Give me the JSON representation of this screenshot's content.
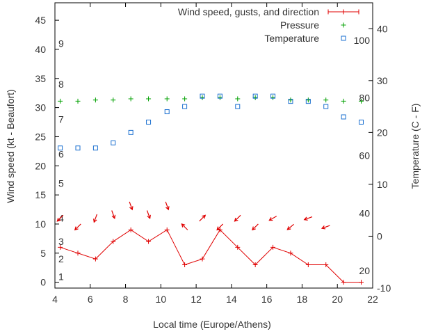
{
  "chart_data": {
    "type": "line",
    "xlabel": "Local time (Europe/Athens)",
    "ylabel": "Wind speed (kt - Beaufort)",
    "y2label": "Temperature (C - F)",
    "xlim": [
      4,
      22
    ],
    "ylim": [
      -1,
      48
    ],
    "y2lim": [
      -10,
      45
    ],
    "x_ticks": [
      4,
      6,
      8,
      10,
      12,
      14,
      16,
      18,
      20,
      22
    ],
    "y_ticks": [
      0,
      5,
      10,
      15,
      20,
      25,
      30,
      35,
      40,
      45
    ],
    "y2_ticks": [
      -10,
      0,
      10,
      20,
      30,
      40
    ],
    "beaufort_labels": [
      {
        "label": "1",
        "value": 1
      },
      {
        "label": "2",
        "value": 4
      },
      {
        "label": "3",
        "value": 7
      },
      {
        "label": "4",
        "value": 11
      },
      {
        "label": "5",
        "value": 17
      },
      {
        "label": "6",
        "value": 22
      },
      {
        "label": "7",
        "value": 28
      },
      {
        "label": "8",
        "value": 34
      },
      {
        "label": "9",
        "value": 41
      }
    ],
    "fahrenheit_labels": [
      {
        "label": "20",
        "value": 20
      },
      {
        "label": "40",
        "value": 40
      },
      {
        "label": "60",
        "value": 60
      },
      {
        "label": "80",
        "value": 80
      },
      {
        "label": "100",
        "value": 100
      }
    ],
    "legend_position": "top-right",
    "colors": {
      "wind": "#e00000",
      "pressure": "#00a000",
      "temperature": "#1a6fd0",
      "text": "#333333"
    },
    "series": [
      {
        "name": "Wind speed, gusts, and direction",
        "axis": "left",
        "x": [
          4.3,
          5.3,
          6.3,
          7.3,
          8.3,
          9.3,
          10.35,
          11.35,
          12.35,
          13.35,
          14.35,
          15.35,
          16.35,
          17.35,
          18.35,
          19.35,
          20.35,
          21.35
        ],
        "values": [
          6,
          5,
          4,
          7,
          9,
          7,
          9,
          3,
          4,
          9,
          6,
          3,
          6,
          5,
          3,
          3,
          0,
          0
        ],
        "direction_markers": [
          {
            "x": 4.3,
            "angle": 225
          },
          {
            "x": 5.3,
            "angle": 225
          },
          {
            "x": 6.3,
            "angle": 200
          },
          {
            "x": 7.3,
            "angle": 160
          },
          {
            "x": 8.3,
            "angle": 160
          },
          {
            "x": 9.3,
            "angle": 160
          },
          {
            "x": 10.35,
            "angle": 160
          },
          {
            "x": 11.35,
            "angle": 315
          },
          {
            "x": 12.35,
            "angle": 45
          },
          {
            "x": 13.35,
            "angle": 225
          },
          {
            "x": 14.35,
            "angle": 225
          },
          {
            "x": 15.35,
            "angle": 225
          },
          {
            "x": 16.35,
            "angle": 240
          },
          {
            "x": 17.35,
            "angle": 230
          },
          {
            "x": 18.35,
            "angle": 250
          },
          {
            "x": 19.35,
            "angle": 250
          }
        ]
      },
      {
        "name": "Pressure",
        "axis": "left",
        "x": [
          4.3,
          5.3,
          6.3,
          7.3,
          8.3,
          9.3,
          10.35,
          11.35,
          12.35,
          13.35,
          14.35,
          15.35,
          16.35,
          17.35,
          18.35,
          19.35,
          20.35,
          21.35
        ],
        "values": [
          31.1,
          31.1,
          31.3,
          31.3,
          31.5,
          31.5,
          31.5,
          31.5,
          31.7,
          31.7,
          31.5,
          31.7,
          31.7,
          31.3,
          31.3,
          31.3,
          31.1,
          31.1
        ]
      },
      {
        "name": "Temperature",
        "axis": "right",
        "x": [
          4.3,
          5.3,
          6.3,
          7.3,
          8.3,
          9.3,
          10.35,
          11.35,
          12.35,
          13.35,
          14.35,
          15.35,
          16.35,
          17.35,
          18.35,
          19.35,
          20.35,
          21.35
        ],
        "values": [
          17,
          17,
          17,
          18,
          20,
          22,
          24,
          25,
          27,
          27,
          25,
          27,
          27,
          26,
          26,
          25,
          23,
          22
        ]
      }
    ]
  }
}
